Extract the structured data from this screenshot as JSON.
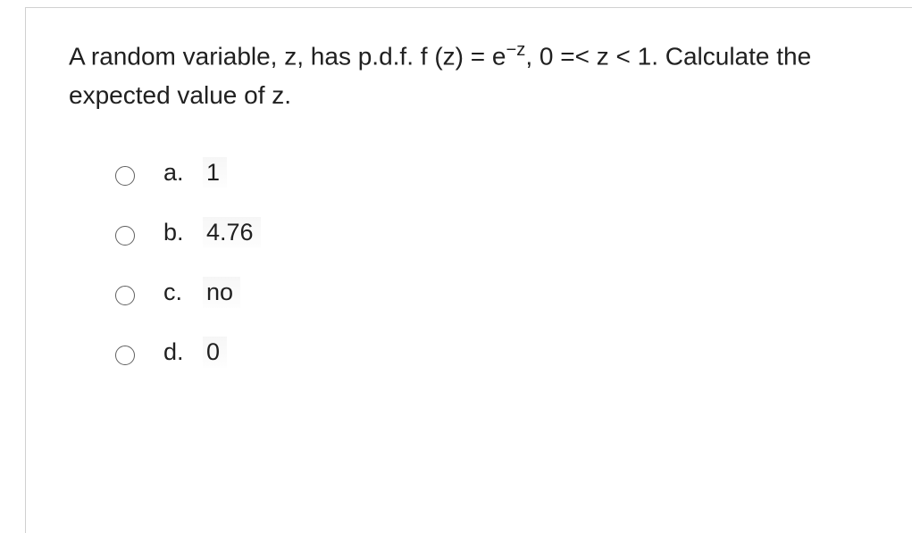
{
  "question": {
    "text_prefix": "A random variable, z, has p.d.f. f (z) = e",
    "exponent": "−z",
    "text_suffix": ", 0 =< z < 1. Calculate the expected value of z."
  },
  "options": [
    {
      "letter": "a.",
      "value": "1"
    },
    {
      "letter": "b.",
      "value": "4.76"
    },
    {
      "letter": "c.",
      "value": "no"
    },
    {
      "letter": "d.",
      "value": "0"
    }
  ],
  "style": {
    "font_size_question": 28,
    "font_size_options": 27,
    "text_color": "#202020",
    "border_color": "#d0d0d0",
    "radio_border_color": "#606060",
    "background": "#ffffff"
  }
}
